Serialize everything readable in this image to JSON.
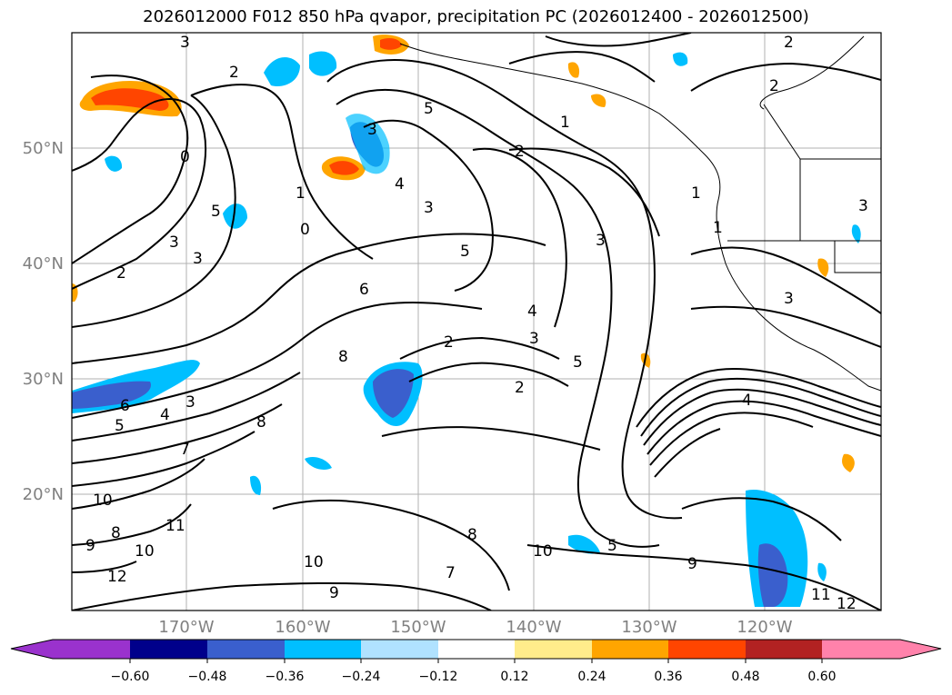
{
  "title": "2026012000 F012 850 hPa qvapor, precipitation PC (2026012400 - 2026012500)",
  "lat_labels": [
    "50°N",
    "40°N",
    "30°N",
    "20°N"
  ],
  "lon_labels": [
    "170°W",
    "160°W",
    "150°W",
    "140°W",
    "130°W",
    "120°W"
  ],
  "colorbar": {
    "tick_labels": [
      "−0.60",
      "−0.48",
      "−0.36",
      "−0.24",
      "−0.12",
      "0.12",
      "0.24",
      "0.36",
      "0.48",
      "0.60"
    ],
    "colors": [
      "#9a32cd",
      "#00008b",
      "#3a5fcd",
      "#00bfff",
      "#b0e2ff",
      "#ffffff",
      "#ffec8b",
      "#ffa500",
      "#ff4500",
      "#b22222",
      "#ff82ab"
    ]
  },
  "contour_labels": [
    {
      "text": "3"
    },
    {
      "text": "2"
    },
    {
      "text": "2"
    },
    {
      "text": "0"
    },
    {
      "text": "5"
    },
    {
      "text": "3"
    },
    {
      "text": "2"
    },
    {
      "text": "3"
    },
    {
      "text": "1"
    },
    {
      "text": "0"
    },
    {
      "text": "3"
    },
    {
      "text": "5"
    },
    {
      "text": "2"
    },
    {
      "text": "4"
    },
    {
      "text": "3"
    },
    {
      "text": "5"
    },
    {
      "text": "3"
    },
    {
      "text": "6"
    },
    {
      "text": "4"
    },
    {
      "text": "3"
    },
    {
      "text": "8"
    },
    {
      "text": "2"
    },
    {
      "text": "5"
    },
    {
      "text": "2"
    },
    {
      "text": "6"
    },
    {
      "text": "4"
    },
    {
      "text": "3"
    },
    {
      "text": "5"
    },
    {
      "text": "7"
    },
    {
      "text": "8"
    },
    {
      "text": "10"
    },
    {
      "text": "8"
    },
    {
      "text": "9"
    },
    {
      "text": "11"
    },
    {
      "text": "10"
    },
    {
      "text": "12"
    },
    {
      "text": "7"
    },
    {
      "text": "8"
    },
    {
      "text": "10"
    },
    {
      "text": "9"
    },
    {
      "text": "10"
    },
    {
      "text": "9"
    },
    {
      "text": "11"
    },
    {
      "text": "12"
    },
    {
      "text": "1"
    },
    {
      "text": "1"
    },
    {
      "text": "3"
    },
    {
      "text": "2"
    },
    {
      "text": "3"
    },
    {
      "text": "1"
    },
    {
      "text": "4"
    },
    {
      "text": "5"
    }
  ]
}
